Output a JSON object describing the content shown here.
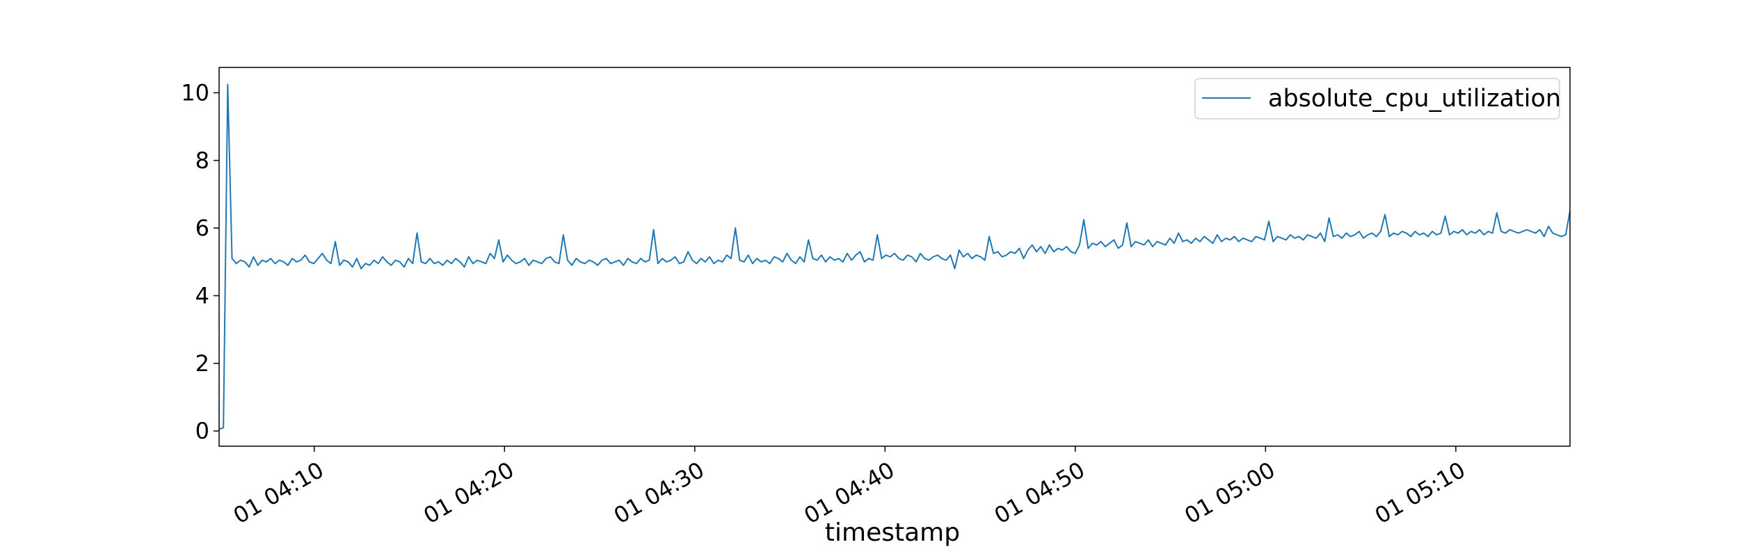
{
  "chart_data": {
    "type": "line",
    "title": "",
    "xlabel": "timestamp",
    "ylabel": "",
    "x_unit": "timestamp",
    "x_start": "01 04:05",
    "x_end": "01 05:16",
    "sample_interval_seconds": 7,
    "xlim": [
      "01 04:05",
      "01 05:16"
    ],
    "ylim": [
      -0.45,
      10.75
    ],
    "xticks": [
      "01 04:10",
      "01 04:20",
      "01 04:30",
      "01 04:40",
      "01 04:50",
      "01 05:00",
      "01 05:10"
    ],
    "yticks": [
      "0",
      "2",
      "4",
      "6",
      "8",
      "10"
    ],
    "grid": false,
    "legend_position": "upper right",
    "series": [
      {
        "name": "absolute_cpu_utilization",
        "color": "#1f77b4",
        "values": [
          0.05,
          0.1,
          10.25,
          5.1,
          4.95,
          5.05,
          5.0,
          4.85,
          5.15,
          4.9,
          5.05,
          5.0,
          5.1,
          4.95,
          5.05,
          5.0,
          4.9,
          5.1,
          5.0,
          5.05,
          5.2,
          5.0,
          4.95,
          5.1,
          5.25,
          5.05,
          4.95,
          5.6,
          4.9,
          5.05,
          5.0,
          4.85,
          5.1,
          4.8,
          4.95,
          4.9,
          5.05,
          4.95,
          5.15,
          5.0,
          4.9,
          5.05,
          5.0,
          4.85,
          5.1,
          4.95,
          5.85,
          5.0,
          4.95,
          5.1,
          4.95,
          5.0,
          4.9,
          5.05,
          4.95,
          5.1,
          5.0,
          4.85,
          5.15,
          4.95,
          5.05,
          5.0,
          4.95,
          5.25,
          5.1,
          5.65,
          5.0,
          5.2,
          5.05,
          4.95,
          5.0,
          5.1,
          4.9,
          5.05,
          5.0,
          4.95,
          5.1,
          5.15,
          5.0,
          4.95,
          5.8,
          5.05,
          4.9,
          5.1,
          5.0,
          4.95,
          5.05,
          5.0,
          4.9,
          5.05,
          5.1,
          4.95,
          5.0,
          5.05,
          4.9,
          5.1,
          5.0,
          4.95,
          5.1,
          5.0,
          5.05,
          5.95,
          4.95,
          5.1,
          5.0,
          5.05,
          5.15,
          4.95,
          5.0,
          5.3,
          5.05,
          4.95,
          5.1,
          5.0,
          5.15,
          4.95,
          5.05,
          5.0,
          5.2,
          5.1,
          6.0,
          5.05,
          5.0,
          5.2,
          4.95,
          5.1,
          5.0,
          5.05,
          4.95,
          5.15,
          5.1,
          5.0,
          5.25,
          5.05,
          4.95,
          5.15,
          5.0,
          5.65,
          5.1,
          5.05,
          5.2,
          5.0,
          5.15,
          5.05,
          5.1,
          5.0,
          5.25,
          5.05,
          5.2,
          5.3,
          5.0,
          5.1,
          5.05,
          5.8,
          5.1,
          5.2,
          5.15,
          5.25,
          5.1,
          5.05,
          5.2,
          5.15,
          5.0,
          5.25,
          5.1,
          5.05,
          5.15,
          5.2,
          5.1,
          5.05,
          5.2,
          4.8,
          5.35,
          5.15,
          5.25,
          5.1,
          5.2,
          5.15,
          5.05,
          5.75,
          5.25,
          5.3,
          5.15,
          5.2,
          5.3,
          5.25,
          5.4,
          5.1,
          5.35,
          5.5,
          5.3,
          5.45,
          5.25,
          5.5,
          5.3,
          5.4,
          5.35,
          5.45,
          5.3,
          5.25,
          5.5,
          6.25,
          5.4,
          5.55,
          5.5,
          5.6,
          5.45,
          5.55,
          5.65,
          5.4,
          5.5,
          6.15,
          5.45,
          5.6,
          5.55,
          5.5,
          5.65,
          5.45,
          5.6,
          5.55,
          5.5,
          5.7,
          5.55,
          5.85,
          5.6,
          5.65,
          5.55,
          5.7,
          5.6,
          5.75,
          5.65,
          5.55,
          5.8,
          5.6,
          5.7,
          5.65,
          5.75,
          5.6,
          5.7,
          5.65,
          5.6,
          5.75,
          5.7,
          5.65,
          6.2,
          5.6,
          5.75,
          5.7,
          5.65,
          5.8,
          5.7,
          5.75,
          5.65,
          5.8,
          5.75,
          5.7,
          5.85,
          5.6,
          6.3,
          5.75,
          5.8,
          5.7,
          5.85,
          5.75,
          5.8,
          5.9,
          5.7,
          5.8,
          5.85,
          5.75,
          5.9,
          6.4,
          5.75,
          5.85,
          5.8,
          5.9,
          5.85,
          5.75,
          5.9,
          5.8,
          5.85,
          5.75,
          5.9,
          5.8,
          5.85,
          6.35,
          5.8,
          5.9,
          5.85,
          5.95,
          5.8,
          5.9,
          5.85,
          5.95,
          5.8,
          5.9,
          5.85,
          6.45,
          5.9,
          5.85,
          5.95,
          5.9,
          5.85,
          5.9,
          5.95,
          5.9,
          5.85,
          5.95,
          5.75,
          6.05,
          5.85,
          5.8,
          5.75,
          5.8,
          6.5
        ]
      }
    ]
  }
}
